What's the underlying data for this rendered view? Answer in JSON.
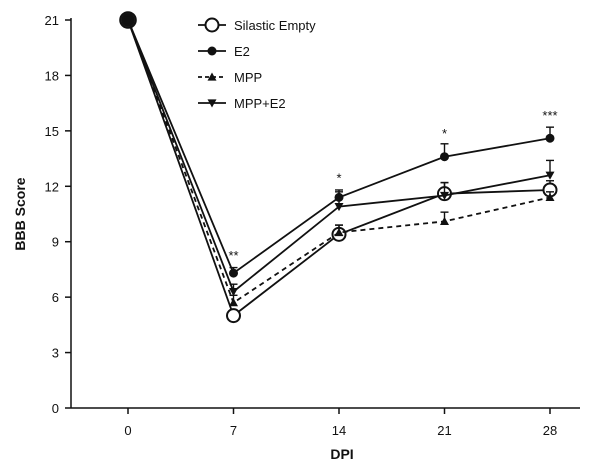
{
  "chart_data": {
    "type": "line",
    "title": "",
    "xlabel": "DPI",
    "ylabel": "BBB Score",
    "x": [
      0,
      7,
      14,
      21,
      28
    ],
    "x_ticks": [
      "0",
      "7",
      "14",
      "21",
      "28"
    ],
    "y_ticks": [
      "0",
      "3",
      "6",
      "9",
      "12",
      "15",
      "18",
      "21"
    ],
    "ylim": [
      0,
      21
    ],
    "grid": false,
    "legend_position": "top",
    "series": [
      {
        "name": "Silastic Empty",
        "marker": "open-circle",
        "line": "solid",
        "values": [
          21,
          5.0,
          9.4,
          11.6,
          11.8
        ],
        "errors": [
          0,
          0,
          0.5,
          0.6,
          0.5
        ]
      },
      {
        "name": "E2",
        "marker": "filled-circle",
        "line": "solid",
        "values": [
          21,
          7.3,
          11.4,
          13.6,
          14.6
        ],
        "errors": [
          0,
          0.3,
          0.4,
          0.7,
          0.6
        ]
      },
      {
        "name": "MPP",
        "marker": "triangle-up",
        "line": "dashed",
        "values": [
          21,
          5.7,
          9.5,
          10.1,
          11.4
        ],
        "errors": [
          0,
          0.4,
          0.4,
          0.5,
          0.3
        ]
      },
      {
        "name": "MPP+E2",
        "marker": "triangle-down",
        "line": "solid",
        "values": [
          21,
          6.3,
          10.9,
          11.5,
          12.6
        ],
        "errors": [
          0,
          0.4,
          0.8,
          0.7,
          0.8
        ]
      }
    ],
    "annotations": [
      {
        "x": 7,
        "y": 8.0,
        "text": "**"
      },
      {
        "x": 14,
        "y": 12.2,
        "text": "*"
      },
      {
        "x": 21,
        "y": 14.6,
        "text": "*"
      },
      {
        "x": 28,
        "y": 15.6,
        "text": "***"
      }
    ]
  }
}
